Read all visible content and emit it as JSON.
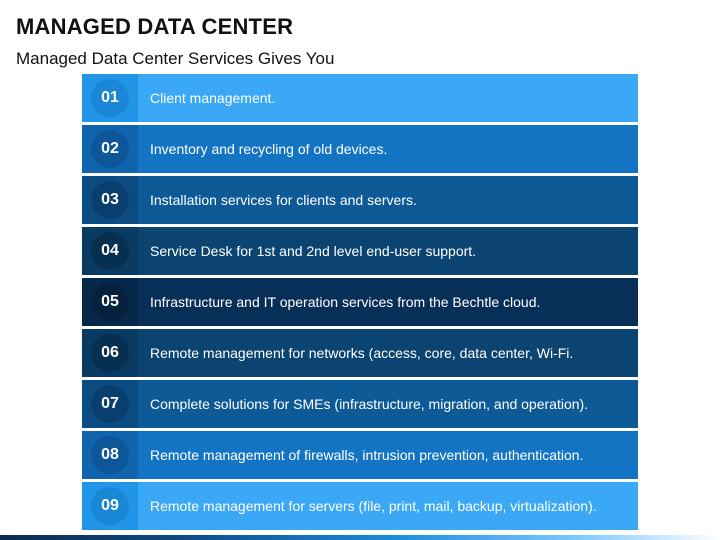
{
  "header": {
    "title": "MANAGED DATA CENTER",
    "subtitle": "Managed Data Center Services Gives You"
  },
  "items": [
    {
      "number": "01",
      "text": "Client management.",
      "bg": "#3aa8f5",
      "num_bg": "#2196e8",
      "circle": "#1a86d6"
    },
    {
      "number": "02",
      "text": "Inventory and recycling of old devices.",
      "bg": "#1474c4",
      "num_bg": "#0f64ad",
      "circle": "#0d5699"
    },
    {
      "number": "03",
      "text": "Installation services for clients and servers.",
      "bg": "#0d5a97",
      "num_bg": "#0a4c82",
      "circle": "#083f6e"
    },
    {
      "number": "04",
      "text": "Service Desk for 1st and 2nd level end-user support.",
      "bg": "#0b4470",
      "num_bg": "#093a62",
      "circle": "#072f50"
    },
    {
      "number": "05",
      "text": "Infrastructure and IT operation services from the Bechtle cloud.",
      "bg": "#072f57",
      "num_bg": "#06284b",
      "circle": "#05213d"
    },
    {
      "number": "06",
      "text": "Remote management for networks (access, core, data center, Wi-Fi.",
      "bg": "#0b4470",
      "num_bg": "#093a62",
      "circle": "#072f50"
    },
    {
      "number": "07",
      "text": "Complete solutions for SMEs (infrastructure, migration, and operation).",
      "bg": "#0d5a97",
      "num_bg": "#0a4c82",
      "circle": "#083f6e"
    },
    {
      "number": "08",
      "text": "Remote management of firewalls, intrusion prevention, authentication.",
      "bg": "#1474c4",
      "num_bg": "#0f64ad",
      "circle": "#0d5699"
    },
    {
      "number": "09",
      "text": "Remote management for servers (file, print, mail, backup, virtualization).",
      "bg": "#3aa8f5",
      "num_bg": "#2196e8",
      "circle": "#1a86d6"
    }
  ]
}
